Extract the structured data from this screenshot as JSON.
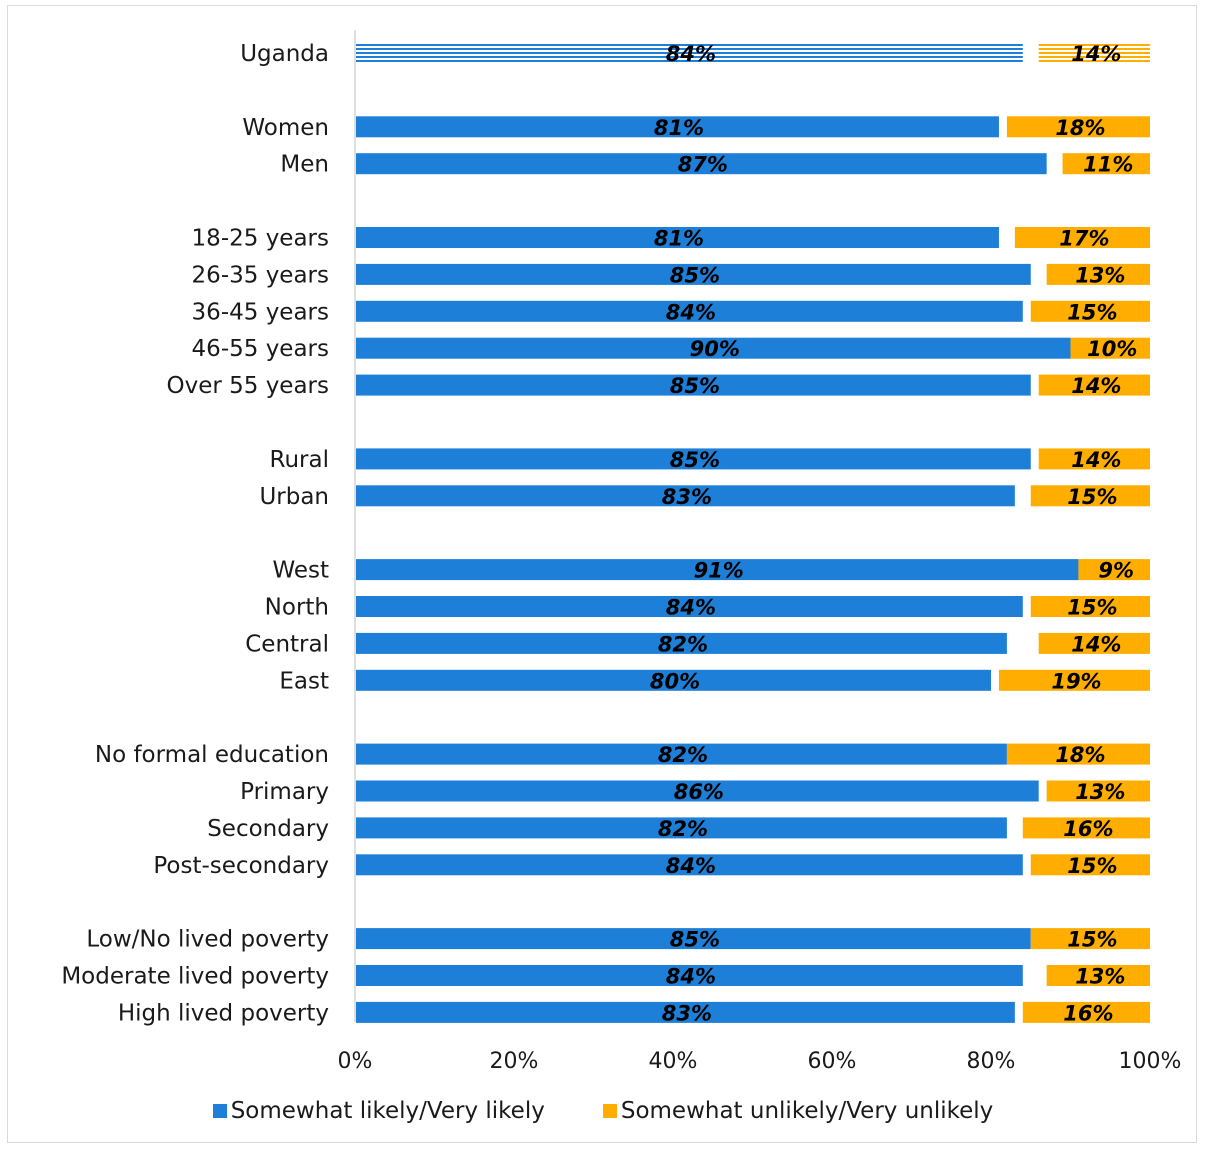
{
  "chart_data": {
    "type": "bar",
    "orientation": "horizontal",
    "stacked": false,
    "categories": [
      "Uganda",
      "Women",
      "Men",
      "18-25 years",
      "26-35 years",
      "36-45 years",
      "46-55 years",
      "Over 55 years",
      "Rural",
      "Urban",
      "West",
      "North",
      "Central",
      "East",
      "No formal education",
      "Primary",
      "Secondary",
      "Post-secondary",
      "Low/No lived poverty",
      "Moderate lived poverty",
      "High lived poverty"
    ],
    "groups": [
      [
        0
      ],
      [
        1,
        2
      ],
      [
        3,
        4,
        5,
        6,
        7
      ],
      [
        8,
        9
      ],
      [
        10,
        11,
        12,
        13
      ],
      [
        14,
        15,
        16,
        17
      ],
      [
        18,
        19,
        20
      ]
    ],
    "series": [
      {
        "name": "Somewhat likely/Very likely",
        "color": "#1e7fd8",
        "anchor": "left",
        "values": [
          84,
          81,
          87,
          81,
          85,
          84,
          90,
          85,
          85,
          83,
          91,
          84,
          82,
          80,
          82,
          86,
          82,
          84,
          85,
          84,
          83
        ]
      },
      {
        "name": "Somewhat unlikely/Very unlikely",
        "color": "#ffae00",
        "anchor": "right",
        "values": [
          14,
          18,
          11,
          17,
          13,
          15,
          10,
          14,
          14,
          15,
          9,
          15,
          14,
          19,
          18,
          13,
          16,
          15,
          15,
          13,
          16
        ]
      }
    ],
    "value_suffix": "%",
    "highlight_category": "Uganda",
    "highlight_pattern": "horizontal-stripes",
    "xaxis": {
      "ticks": [
        "0%",
        "20%",
        "40%",
        "60%",
        "80%",
        "100%"
      ],
      "range": [
        0,
        100
      ]
    },
    "legend": {
      "position": "bottom"
    },
    "grid": false
  }
}
